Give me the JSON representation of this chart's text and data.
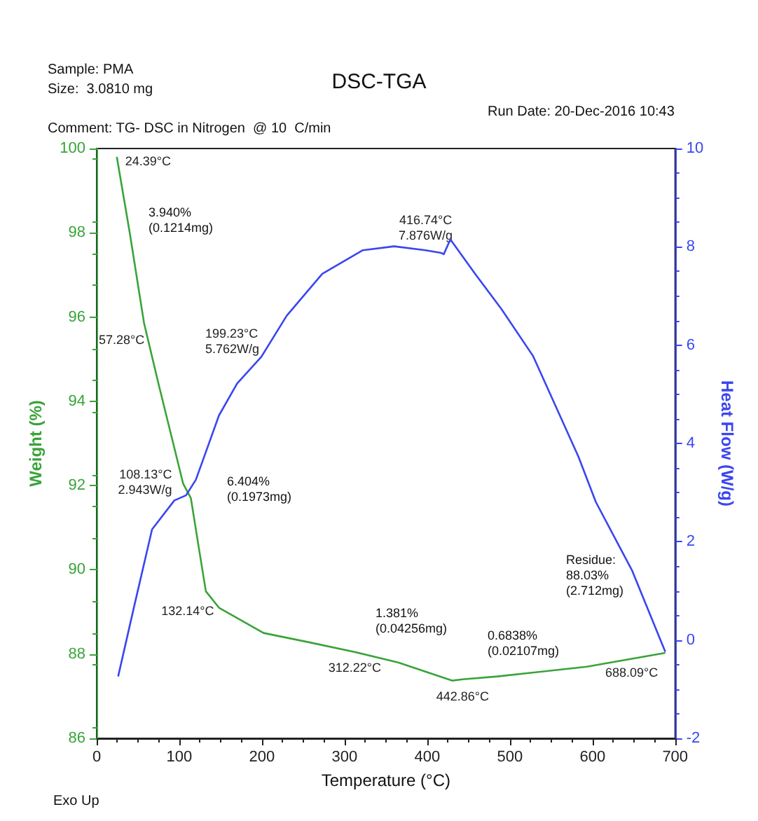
{
  "chart_data": {
    "type": "line",
    "title": "DSC-TGA",
    "xlabel": "Temperature (°C)",
    "ylabel": "Weight (%)",
    "y2label": "Heat Flow (W/g)",
    "xlim": [
      0,
      700
    ],
    "xticks": [
      0,
      100,
      200,
      300,
      400,
      500,
      600,
      700
    ],
    "ylim": [
      86,
      100
    ],
    "yticks": [
      86,
      88,
      90,
      92,
      94,
      96,
      98,
      100
    ],
    "y2lim": [
      -2,
      10
    ],
    "y2ticks": [
      -2,
      0,
      2,
      4,
      6,
      8,
      10
    ],
    "grid": false,
    "marker": "none",
    "line_style": "solid",
    "series": [
      {
        "color": "#3aa33a",
        "x": [
          24.39,
          40,
          57.28,
          75,
          104.7,
          114,
          123.8,
          132.14,
          148,
          202,
          257,
          312.22,
          365,
          430,
          442.86,
          485,
          593,
          688.09
        ],
        "values": [
          99.8,
          98,
          95.86,
          94.4,
          92.04,
          91.7,
          90.5,
          89.49,
          89.1,
          88.5,
          88.28,
          88.05,
          87.8,
          87.37,
          87.4,
          87.47,
          87.7,
          88.03
        ]
      },
      {
        "color": "#3a46f0",
        "axis": "y2",
        "x": [
          26,
          45,
          67,
          94,
          108.13,
          120,
          132,
          148,
          170,
          199.23,
          230,
          273,
          322,
          360,
          398,
          416.74,
          420,
          428,
          458,
          490,
          528,
          583,
          604,
          648,
          688.09
        ],
        "values": [
          -0.74,
          0.66,
          2.25,
          2.84,
          2.943,
          3.26,
          3.82,
          4.57,
          5.22,
          5.762,
          6.6,
          7.45,
          7.93,
          8.01,
          7.93,
          7.876,
          7.85,
          8.15,
          7.45,
          6.73,
          5.78,
          3.73,
          2.81,
          1.41,
          -0.24
        ]
      }
    ],
    "annotations": [
      "Sample: PMA",
      "Size:  3.0810 mg",
      "Comment: TG- DSC in Nitrogen  @ 10  C/min",
      "Run Date: 20-Dec-2016 10:43",
      "Exo Up",
      "3.940%\n(0.1214mg)",
      "6.404%\n(0.1973mg)",
      "1.381%\n(0.04256mg)",
      "0.6838%\n(0.02107mg)",
      "Residue:\n88.03%\n(2.712mg)",
      {
        "text": "24.39°C",
        "x": 24.39,
        "y": 99.8
      },
      {
        "text": "57.28°C",
        "x": 57.28,
        "y": 95.86
      },
      {
        "text": "199.23°C\n5.762W/g",
        "x": 199.23,
        "y": 95.06
      },
      {
        "text": "108.13°C\n2.943W/g",
        "x": 108.13,
        "y": 91.78
      },
      {
        "text": "132.14°C",
        "x": 132.14,
        "y": 89.49
      },
      {
        "text": "312.22°C",
        "x": 312.22,
        "y": 88.05
      },
      {
        "text": "442.86°C",
        "x": 442.86,
        "y": 87.4
      },
      {
        "text": "416.74°C\n7.876W/g",
        "x": 416.74,
        "y": 97.52
      },
      {
        "text": "688.09°C",
        "x": 688.09,
        "y": 88.03
      }
    ]
  }
}
